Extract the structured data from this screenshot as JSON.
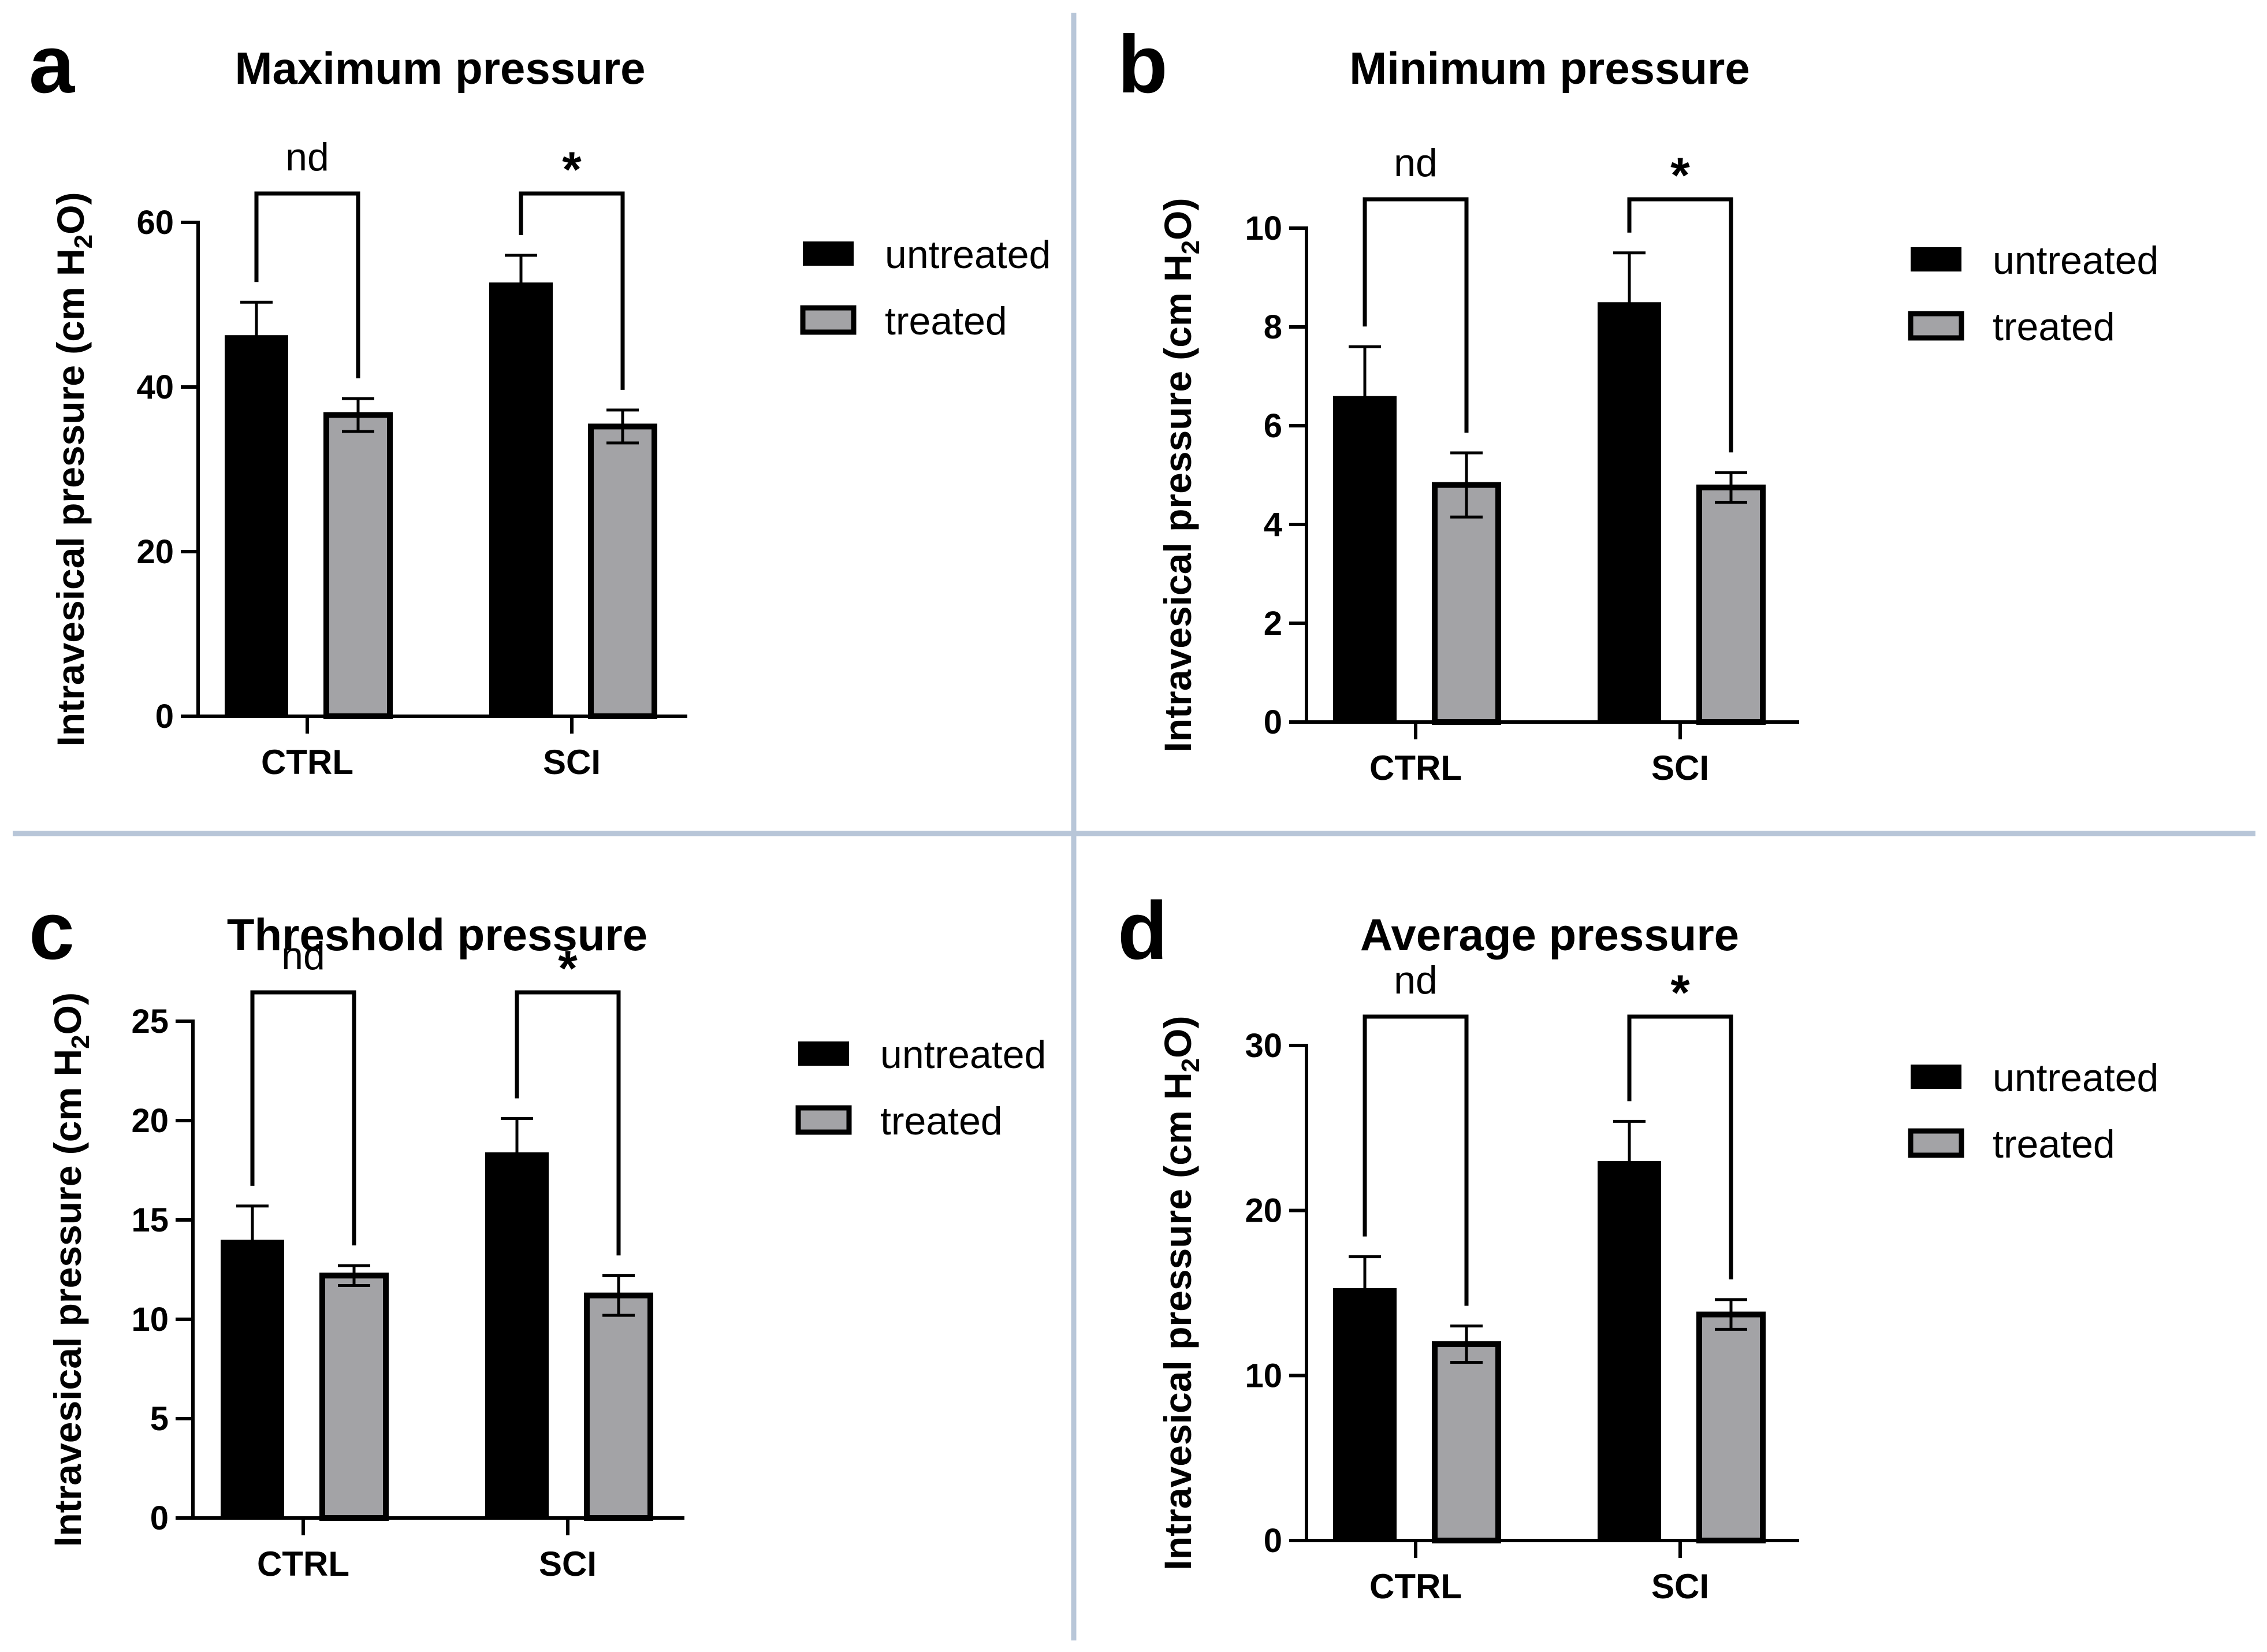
{
  "legend": {
    "untreated": "untreated",
    "treated": "treated"
  },
  "colors": {
    "untreated": "#000000",
    "treated": "#a3a3a6",
    "separator": "#b8c6d8"
  },
  "chart_data": [
    {
      "type": "bar",
      "panel": "a",
      "title": "Maximum pressure",
      "ylabel": "Intravesical pressure (cm H2O)",
      "ylim": [
        0,
        60
      ],
      "yticks": [
        0,
        20,
        40,
        60
      ],
      "categories": [
        "CTRL",
        "SCI"
      ],
      "series": [
        {
          "name": "untreated",
          "values": [
            46.3,
            52.7
          ],
          "errors": [
            4.0,
            3.3
          ]
        },
        {
          "name": "treated",
          "values": [
            36.6,
            35.2
          ],
          "errors": [
            2.0,
            2.0
          ]
        }
      ],
      "significance": [
        "nd",
        "*"
      ]
    },
    {
      "type": "bar",
      "panel": "b",
      "title": "Minimum pressure",
      "ylabel": "Intravesical pressure (cm H2O)",
      "ylim": [
        0,
        10
      ],
      "yticks": [
        0,
        2,
        4,
        6,
        8,
        10
      ],
      "categories": [
        "CTRL",
        "SCI"
      ],
      "series": [
        {
          "name": "untreated",
          "values": [
            6.6,
            8.5
          ],
          "errors": [
            1.0,
            1.0
          ]
        },
        {
          "name": "treated",
          "values": [
            4.8,
            4.75
          ],
          "errors": [
            0.65,
            0.3
          ]
        }
      ],
      "significance": [
        "nd",
        "*"
      ]
    },
    {
      "type": "bar",
      "panel": "c",
      "title": "Threshold pressure",
      "ylabel": "Intravesical pressure (cm H2O)",
      "ylim": [
        0,
        25
      ],
      "yticks": [
        0,
        5,
        10,
        15,
        20,
        25
      ],
      "categories": [
        "CTRL",
        "SCI"
      ],
      "series": [
        {
          "name": "untreated",
          "values": [
            14.0,
            18.4
          ],
          "errors": [
            1.7,
            1.7
          ]
        },
        {
          "name": "treated",
          "values": [
            12.2,
            11.2
          ],
          "errors": [
            0.5,
            1.0
          ]
        }
      ],
      "significance": [
        "nd",
        "*"
      ]
    },
    {
      "type": "bar",
      "panel": "d",
      "title": "Average pressure",
      "ylabel": "Intravesical pressure (cm H2O)",
      "ylim": [
        0,
        30
      ],
      "yticks": [
        0,
        10,
        20,
        30
      ],
      "categories": [
        "CTRL",
        "SCI"
      ],
      "series": [
        {
          "name": "untreated",
          "values": [
            15.3,
            23.0
          ],
          "errors": [
            1.9,
            2.4
          ]
        },
        {
          "name": "treated",
          "values": [
            11.9,
            13.7
          ],
          "errors": [
            1.1,
            0.9
          ]
        }
      ],
      "significance": [
        "nd",
        "*"
      ]
    }
  ]
}
